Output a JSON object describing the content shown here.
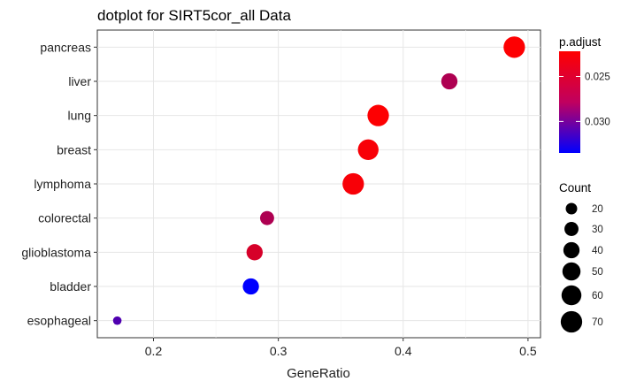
{
  "chart_data": {
    "type": "scatter",
    "title": "dotplot for SIRT5cor_all Data",
    "xlabel": "GeneRatio",
    "ylabel": "",
    "xlim": [
      0.155,
      0.51
    ],
    "x_ticks": [
      0.2,
      0.3,
      0.4,
      0.5
    ],
    "x_tick_labels": [
      "0.2",
      "0.3",
      "0.4",
      "0.5"
    ],
    "categories": [
      "pancreas",
      "liver",
      "lung",
      "breast",
      "lymphoma",
      "colorectal",
      "glioblastoma",
      "bladder",
      "esophageal"
    ],
    "points": [
      {
        "category": "pancreas",
        "x": 0.489,
        "count": 70,
        "p_adjust": 0.0223
      },
      {
        "category": "liver",
        "x": 0.437,
        "count": 40,
        "p_adjust": 0.0258
      },
      {
        "category": "lung",
        "x": 0.38,
        "count": 70,
        "p_adjust": 0.0223
      },
      {
        "category": "breast",
        "x": 0.372,
        "count": 65,
        "p_adjust": 0.0225
      },
      {
        "category": "lymphoma",
        "x": 0.36,
        "count": 70,
        "p_adjust": 0.0225
      },
      {
        "category": "colorectal",
        "x": 0.291,
        "count": 30,
        "p_adjust": 0.0258
      },
      {
        "category": "glioblastoma",
        "x": 0.281,
        "count": 40,
        "p_adjust": 0.024
      },
      {
        "category": "bladder",
        "x": 0.278,
        "count": 40,
        "p_adjust": 0.0335
      },
      {
        "category": "esophageal",
        "x": 0.171,
        "count": 11,
        "p_adjust": 0.03
      }
    ],
    "grid": true,
    "color_legend": {
      "title": "p.adjust",
      "ticks": [
        0.025,
        0.03
      ],
      "tick_labels": [
        "0.025",
        "0.030"
      ],
      "range": [
        0.0222,
        0.0335
      ],
      "low_color": "#ff0000",
      "high_color": "#0000ff"
    },
    "size_legend": {
      "title": "Count",
      "values": [
        20,
        30,
        40,
        50,
        60,
        70
      ],
      "labels": [
        "20",
        "30",
        "40",
        "50",
        "60",
        "70"
      ]
    },
    "legend_placement": "right"
  }
}
